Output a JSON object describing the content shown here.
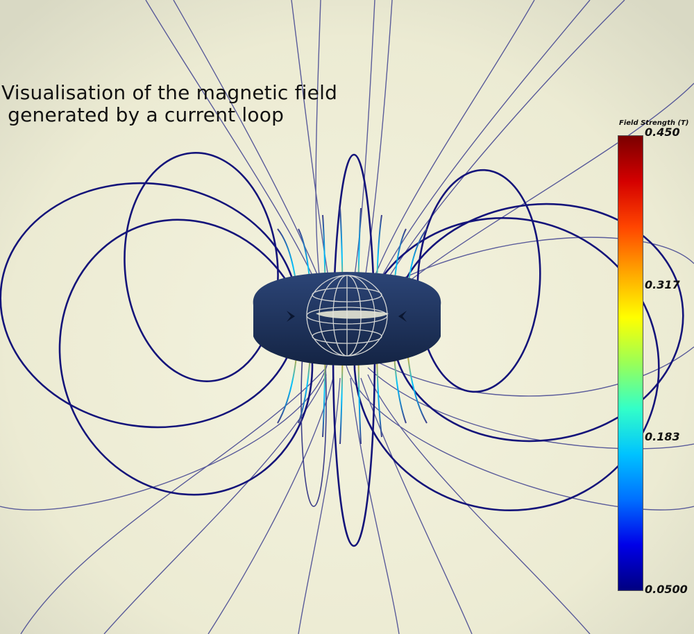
{
  "title_lines": [
    "Visualisation of the magnetic field",
    " generated by a current loop"
  ],
  "legend": {
    "title": "Field Strength (T)",
    "labels": [
      "0.450",
      "0.317",
      "0.183",
      "0.0500"
    ],
    "colormap": [
      "#7a0000",
      "#d40000",
      "#ff4500",
      "#ffa500",
      "#ffff00",
      "#9aff57",
      "#33ffc8",
      "#00c3ff",
      "#0070ff",
      "#0000e8",
      "#000080"
    ]
  },
  "colors": {
    "background": "#f2f1dc",
    "field_line_outer": "#3d3f8a",
    "field_line_loop": "#14147a",
    "torus": "#1f3563",
    "sphere_mesh": "#e6e6e0"
  },
  "icons": {
    "current_arrows": "triangle-arrow"
  }
}
